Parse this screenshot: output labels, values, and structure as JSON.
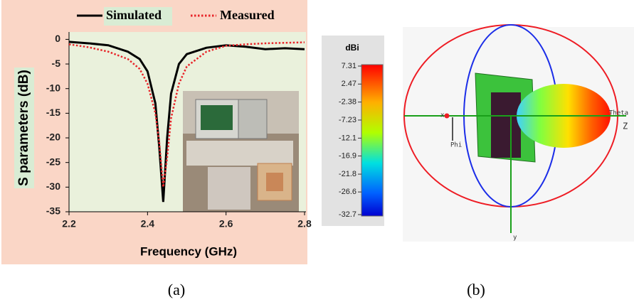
{
  "chart_data": {
    "type": "line",
    "x": [
      2.2,
      2.25,
      2.3,
      2.35,
      2.38,
      2.4,
      2.42,
      2.43,
      2.44,
      2.45,
      2.46,
      2.48,
      2.5,
      2.55,
      2.6,
      2.65,
      2.7,
      2.75,
      2.8
    ],
    "series": [
      {
        "name": "Simulated",
        "color": "#000000",
        "style": "solid",
        "values": [
          -0.5,
          -0.8,
          -1.2,
          -2.5,
          -4,
          -6.5,
          -13,
          -22,
          -33,
          -20,
          -11,
          -5,
          -3,
          -1.7,
          -1.2,
          -1.5,
          -2,
          -1.8,
          -2
        ]
      },
      {
        "name": "Measured",
        "color": "#e8262a",
        "style": "dotted",
        "values": [
          -1,
          -1.6,
          -2.5,
          -4,
          -6,
          -9,
          -15,
          -21,
          -30,
          -24,
          -16,
          -9,
          -5.5,
          -2.5,
          -1.3,
          -1,
          -0.8,
          -0.7,
          -0.6
        ]
      }
    ],
    "xlabel": "Frequency (GHz)",
    "ylabel": "S parameters (dB)",
    "xlim": [
      2.2,
      2.8
    ],
    "xticks": [
      2.2,
      2.4,
      2.6,
      2.8
    ],
    "ylim": [
      -35,
      1.5
    ],
    "yticks": [
      0,
      -5,
      -10,
      -15,
      -20,
      -25,
      -30,
      -35
    ],
    "grid": false,
    "legend": "top"
  },
  "panel_b": {
    "colorbar": {
      "unit": "dBi",
      "ticks": [
        7.31,
        2.47,
        -2.38,
        -7.23,
        -12.1,
        -16.9,
        -21.8,
        -26.6,
        -32.7
      ]
    },
    "axis_labels": {
      "x": "x",
      "phi": "Phi",
      "theta": "Theta",
      "z": "Z",
      "y": "y"
    }
  },
  "captions": [
    "(a)",
    "(b)"
  ]
}
